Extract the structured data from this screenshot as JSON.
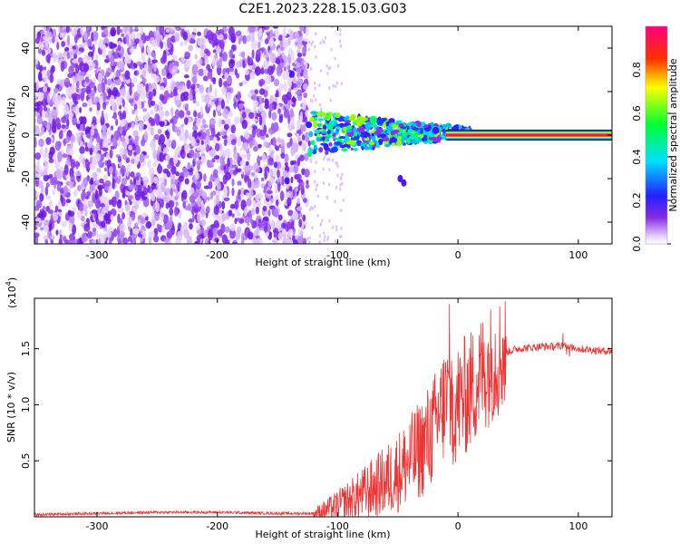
{
  "title": "C2E1.2023.228.15.03.G03",
  "chart_data": [
    {
      "type": "heatmap",
      "xlabel": "Height of straight line (km)",
      "ylabel": "Frequency (Hz)",
      "xlim": [
        -352,
        128
      ],
      "ylim": [
        -50,
        50
      ],
      "xticks": [
        -300,
        -200,
        -100,
        0,
        100
      ],
      "yticks": [
        -40,
        -20,
        0,
        20,
        40
      ],
      "colorbar": {
        "label": "Normalized spectral amplitude",
        "ticks": [
          "0.0",
          "0.2",
          "0.4",
          "0.6",
          "0.8"
        ],
        "range": [
          0,
          1
        ]
      },
      "regions": [
        {
          "name": "scattered noise",
          "x": [
            -352,
            -125
          ],
          "y": [
            -50,
            50
          ],
          "amplitude": [
            0.05,
            0.35
          ]
        },
        {
          "name": "emerging signal",
          "x": [
            -125,
            10
          ],
          "y": [
            -8,
            10
          ],
          "amplitude": [
            0.3,
            0.9
          ]
        },
        {
          "name": "steady carrier",
          "x": [
            10,
            128
          ],
          "y": [
            0,
            0
          ],
          "amplitude": [
            0.95,
            1.0
          ]
        }
      ],
      "grid": false
    },
    {
      "type": "line",
      "xlabel": "Height of straight line (km)",
      "ylabel": "SNR (10 * v/v)",
      "yscale_label": "(x10",
      "yscale_exp": "4",
      "xlim": [
        -352,
        128
      ],
      "ylim": [
        0,
        1.95
      ],
      "xticks": [
        -300,
        -200,
        -100,
        0,
        100
      ],
      "yticks": [
        "0.5",
        "1.0",
        "1.5"
      ],
      "series": [
        {
          "color": "#ee3333",
          "x": [
            -352,
            -300,
            -250,
            -200,
            -150,
            -120,
            -110,
            -100,
            -90,
            -80,
            -70,
            -60,
            -50,
            -40,
            -30,
            -20,
            -15,
            -10,
            -5,
            0,
            10,
            20,
            30,
            40,
            50,
            60,
            70,
            80,
            90,
            100,
            110,
            120,
            128
          ],
          "y": [
            0.02,
            0.03,
            0.04,
            0.04,
            0.03,
            0.03,
            0.06,
            0.1,
            0.15,
            0.2,
            0.26,
            0.32,
            0.4,
            0.5,
            0.62,
            0.78,
            0.9,
            1.05,
            0.98,
            1.02,
            1.12,
            1.28,
            1.4,
            1.47,
            1.5,
            1.51,
            1.52,
            1.52,
            1.53,
            1.5,
            1.49,
            1.48,
            1.48
          ]
        }
      ],
      "grid": false
    }
  ]
}
